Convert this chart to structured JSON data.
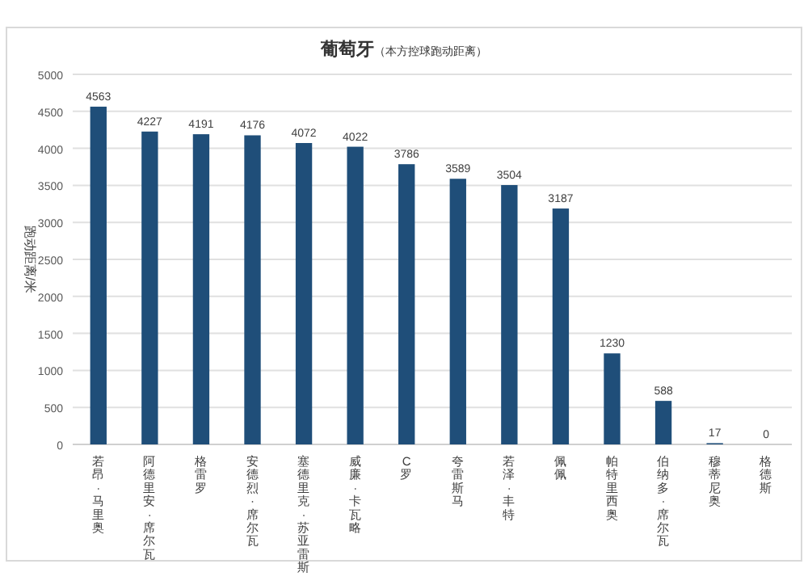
{
  "chart_data": {
    "type": "bar",
    "title": "葡萄牙",
    "subtitle": "（本方控球跑动距离）",
    "ylabel": "跑动距离/米",
    "categories": [
      "若昂·马里奥",
      "阿德里安·席尔瓦",
      "格雷罗",
      "安德烈·席尔瓦",
      "塞德里克·苏亚雷斯",
      "威廉·卡瓦略",
      "C罗",
      "夸雷斯马",
      "若泽·丰特",
      "佩佩",
      "帕特里西奥",
      "伯纳多·席尔瓦",
      "穆蒂尼奥",
      "格德斯"
    ],
    "values": [
      4563,
      4227,
      4191,
      4176,
      4072,
      4022,
      3786,
      3589,
      3504,
      3187,
      1230,
      588,
      17,
      0
    ],
    "color": "#1f4e79",
    "ylim": [
      0,
      5000
    ],
    "yticks": [
      0,
      500,
      1000,
      1500,
      2000,
      2500,
      3000,
      3500,
      4000,
      4500,
      5000
    ],
    "grid": "y",
    "data_labels": true
  }
}
